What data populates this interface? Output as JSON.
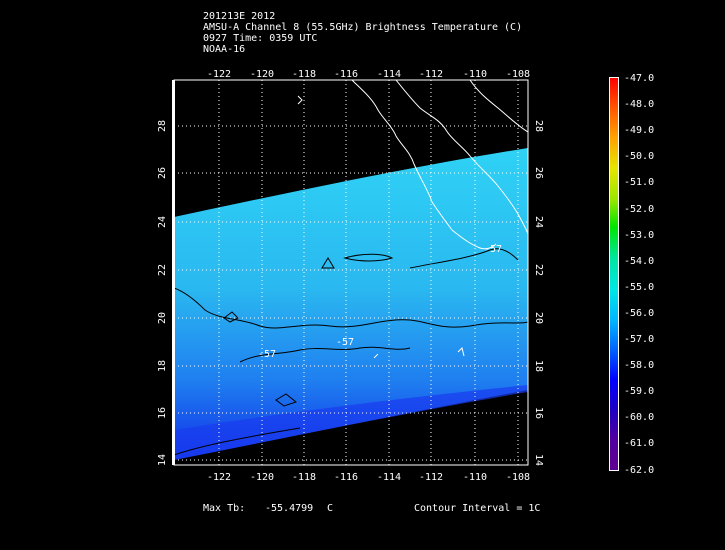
{
  "header": {
    "line1": "201213E 2012",
    "line2": "AMSU-A Channel 8 (55.5GHz) Brightness Temperature (C)",
    "line3": "0927 Time: 0359 UTC",
    "line4": "NOAA-16"
  },
  "map": {
    "lon_labels": [
      "-122",
      "-120",
      "-118",
      "-116",
      "-114",
      "-112",
      "-110",
      "-108"
    ],
    "lat_labels": [
      "28",
      "26",
      "24",
      "22",
      "20",
      "18",
      "16",
      "14"
    ],
    "contour_labels": [
      "-57",
      "-57",
      "-57"
    ],
    "swath_color": "#3cc6f0",
    "coast_color": "#ffffff"
  },
  "colorbar": {
    "labels": [
      "-47.0",
      "-48.0",
      "-49.0",
      "-50.0",
      "-51.0",
      "-52.0",
      "-53.0",
      "-54.0",
      "-55.0",
      "-56.0",
      "-57.0",
      "-58.0",
      "-59.0",
      "-60.0",
      "-61.0",
      "-62.0"
    ]
  },
  "footer": {
    "max_label": "Max Tb:",
    "max_value": "-55.4799",
    "max_unit": "C",
    "contour_interval": "Contour Interval = 1C"
  }
}
